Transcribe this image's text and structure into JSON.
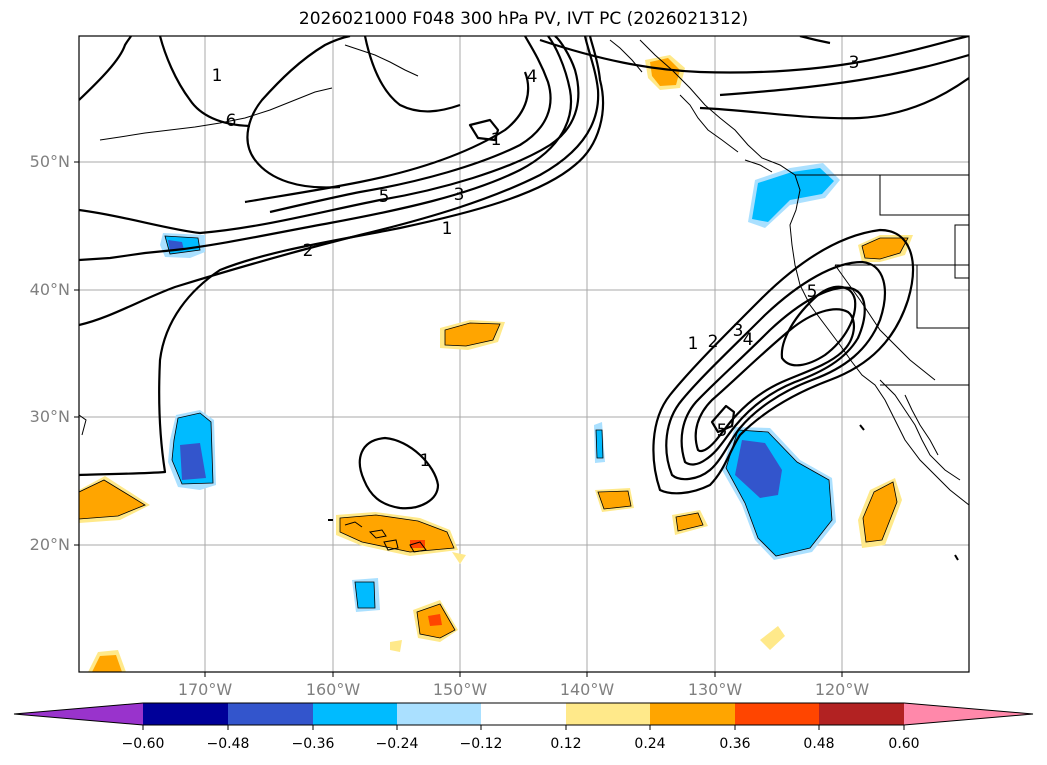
{
  "title": "2026021000 F048 300 hPa PV, IVT PC (2026021312)",
  "latitude_labels": [
    "50°N",
    "40°N",
    "30°N",
    "20°N"
  ],
  "longitude_labels": [
    "170°W",
    "160°W",
    "150°W",
    "140°W",
    "130°W",
    "120°W"
  ],
  "contour_labels": [
    "1",
    "6",
    "4",
    "3",
    "5",
    "3",
    "1",
    "2",
    "1",
    "1",
    "2",
    "3",
    "4",
    "5",
    "5",
    "1"
  ],
  "colorbar": {
    "tick_labels": [
      "−0.60",
      "−0.48",
      "−0.36",
      "−0.24",
      "−0.12",
      "0.12",
      "0.24",
      "0.36",
      "0.48",
      "0.60"
    ],
    "colors": [
      "#9933cc",
      "#000099",
      "#3355cc",
      "#00bbff",
      "#aae0ff",
      "#ffffff",
      "#ffe98a",
      "#ffa500",
      "#ff4500",
      "#b22222",
      "#ff88aa"
    ]
  },
  "colors": {
    "positive_light": "#ffe98a",
    "positive": "#ffa500",
    "positive_strong": "#ff4500",
    "negative_light": "#aae0ff",
    "negative": "#00bbff",
    "negative_strong": "#3355cc"
  }
}
